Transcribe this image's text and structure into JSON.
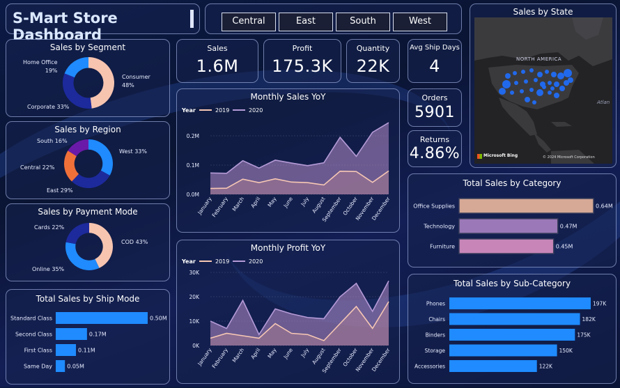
{
  "header": {
    "title": "S-Mart Store Dashboard"
  },
  "region_tabs": [
    "Central",
    "East",
    "South",
    "West"
  ],
  "kpis": {
    "sales": {
      "label": "Sales",
      "value": "1.6M"
    },
    "profit": {
      "label": "Profit",
      "value": "175.3K"
    },
    "quantity": {
      "label": "Quantity",
      "value": "22K"
    },
    "avg_ship_days": {
      "label": "Avg Ship Days",
      "value": "4"
    },
    "orders": {
      "label": "Orders",
      "value": "5901"
    },
    "returns": {
      "label": "Returns",
      "value": "4.86%"
    }
  },
  "map": {
    "title": "Sales by State",
    "north_america_label": "NORTH AMERICA",
    "ocean_label": "Atlan",
    "bing_label": "Microsoft Bing",
    "copyright": "© 2024 Microsoft Corporation"
  },
  "colors": {
    "blue": "#1f8bff",
    "navy": "#1d2a9c",
    "peach": "#f7c4b0",
    "orange": "#f0703a",
    "purple": "#6a1aa8",
    "series_2019": "#f7c8b4",
    "series_2020": "#b59bd8"
  },
  "chart_data": [
    {
      "id": "segment",
      "type": "pie",
      "title": "Sales by Segment",
      "labels": [
        "Consumer",
        "Corporate",
        "Home Office"
      ],
      "label_texts": [
        "Consumer\n48%",
        "Corporate 33%",
        "Home Office\n19%"
      ],
      "values": [
        48,
        33,
        19
      ],
      "colors": [
        "#f7c4b0",
        "#1d2a9c",
        "#1f8bff"
      ]
    },
    {
      "id": "region",
      "type": "pie",
      "title": "Sales by Region",
      "labels": [
        "West",
        "East",
        "Central",
        "South"
      ],
      "label_texts": [
        "West 33%",
        "East 29%",
        "Central 22%",
        "South 16%"
      ],
      "values": [
        33,
        29,
        22,
        16
      ],
      "colors": [
        "#1f8bff",
        "#1d2a9c",
        "#f0703a",
        "#6a1aa8"
      ]
    },
    {
      "id": "payment",
      "type": "pie",
      "title": "Sales by Payment Mode",
      "labels": [
        "COD",
        "Online",
        "Cards"
      ],
      "label_texts": [
        "COD 43%",
        "Online 35%",
        "Cards 22%"
      ],
      "values": [
        43,
        35,
        22
      ],
      "colors": [
        "#f7c4b0",
        "#1f8bff",
        "#1d2a9c"
      ]
    },
    {
      "id": "shipmode",
      "type": "bar",
      "orientation": "horizontal",
      "title": "Total Sales by Ship Mode",
      "categories": [
        "Standard Class",
        "Second Class",
        "First Class",
        "Same Day"
      ],
      "values": [
        0.5,
        0.17,
        0.11,
        0.05
      ],
      "value_labels": [
        "0.50M",
        "0.17M",
        "0.11M",
        "0.05M"
      ],
      "color": "#1f8bff"
    },
    {
      "id": "monthly_sales",
      "type": "area",
      "title": "Monthly Sales YoY",
      "legend_title": "Year",
      "legend_position": "top-left",
      "x": [
        "January",
        "February",
        "March",
        "April",
        "May",
        "June",
        "July",
        "August",
        "September",
        "October",
        "November",
        "December"
      ],
      "series": [
        {
          "name": "2019",
          "values": [
            0.02,
            0.021,
            0.052,
            0.04,
            0.053,
            0.042,
            0.04,
            0.032,
            0.079,
            0.078,
            0.041,
            0.08
          ]
        },
        {
          "name": "2020",
          "values": [
            0.073,
            0.072,
            0.115,
            0.09,
            0.117,
            0.107,
            0.098,
            0.108,
            0.195,
            0.13,
            0.212,
            0.245
          ]
        }
      ],
      "y_ticks": [
        "0.0M",
        "0.1M",
        "0.2M"
      ],
      "y_tick_values": [
        0,
        0.1,
        0.2
      ],
      "ylim": [
        0,
        0.25
      ]
    },
    {
      "id": "monthly_profit",
      "type": "area",
      "title": "Monthly Profit YoY",
      "legend_title": "Year",
      "legend_position": "top-left",
      "x": [
        "January",
        "February",
        "March",
        "April",
        "May",
        "June",
        "July",
        "August",
        "September",
        "October",
        "November",
        "December"
      ],
      "series": [
        {
          "name": "2019",
          "values": [
            3000,
            5000,
            4000,
            3000,
            9000,
            5000,
            4500,
            2000,
            9000,
            16000,
            7000,
            18000
          ]
        },
        {
          "name": "2020",
          "values": [
            10000,
            7000,
            18500,
            4500,
            15000,
            13000,
            11500,
            11000,
            20000,
            25500,
            14000,
            26500
          ]
        }
      ],
      "y_ticks": [
        "0K",
        "10K",
        "20K",
        "30K"
      ],
      "y_tick_values": [
        0,
        10000,
        20000,
        30000
      ],
      "ylim": [
        0,
        30000
      ]
    },
    {
      "id": "category",
      "type": "bar",
      "orientation": "horizontal",
      "title": "Total Sales by Category",
      "categories": [
        "Office Supplies",
        "Technology",
        "Furniture"
      ],
      "values": [
        0.64,
        0.47,
        0.45
      ],
      "value_labels": [
        "0.64M",
        "0.47M",
        "0.45M"
      ],
      "colors": [
        "#d6a996",
        "#9b79b8",
        "#c886b8"
      ]
    },
    {
      "id": "subcategory",
      "type": "bar",
      "orientation": "horizontal",
      "title": "Total Sales by Sub-Category",
      "categories": [
        "Phones",
        "Chairs",
        "Binders",
        "Storage",
        "Accessories"
      ],
      "values": [
        197,
        182,
        175,
        150,
        122
      ],
      "value_labels": [
        "197K",
        "182K",
        "175K",
        "150K",
        "122K"
      ],
      "color": "#1f8bff"
    }
  ]
}
